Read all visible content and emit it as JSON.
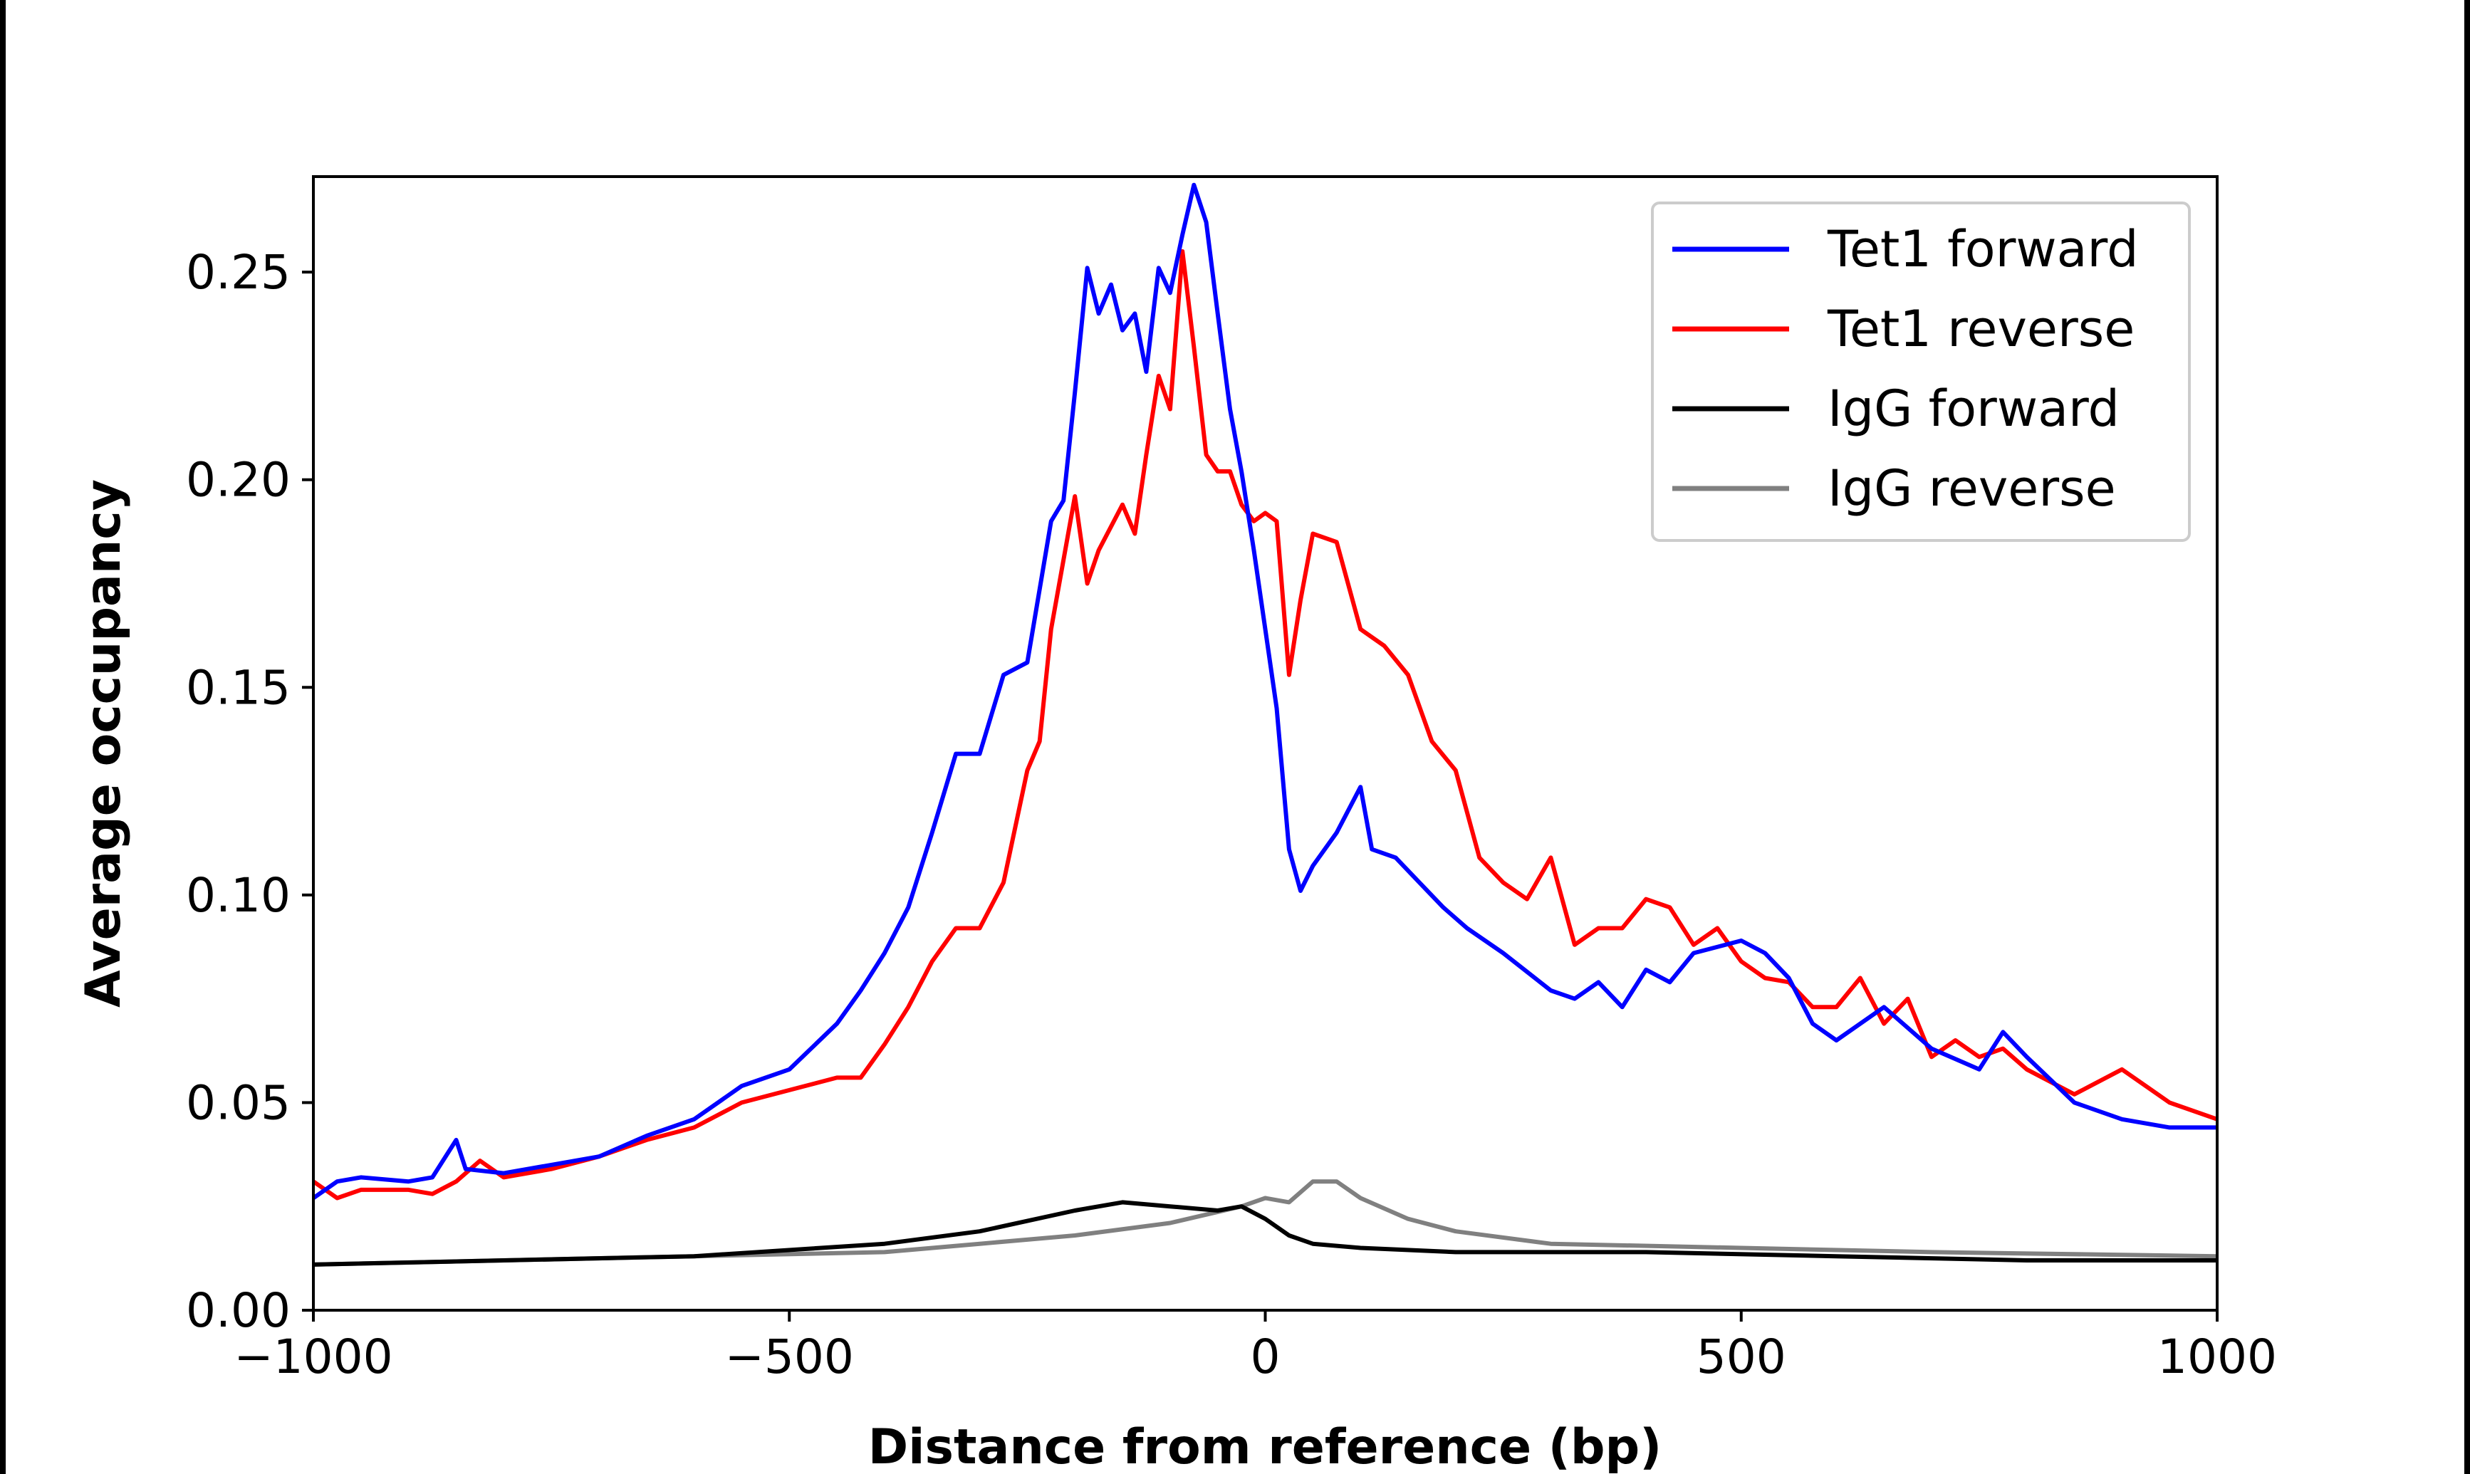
{
  "chart_data": {
    "type": "line",
    "title": "",
    "xlabel": "Distance from reference (bp)",
    "ylabel": "Average occupancy",
    "xlim": [
      -1000,
      1000
    ],
    "ylim": [
      0,
      0.273
    ],
    "xticks": [
      -1000,
      -500,
      0,
      500,
      1000
    ],
    "xtick_labels": [
      "−1000",
      "−500",
      "0",
      "500",
      "1000"
    ],
    "yticks": [
      0,
      0.05,
      0.1,
      0.15,
      0.2,
      0.25
    ],
    "ytick_labels": [
      "0.00",
      "0.05",
      "0.10",
      "0.15",
      "0.20",
      "0.25"
    ],
    "grid": false,
    "legend_position": "top-right",
    "series": [
      {
        "name": "Tet1 forward",
        "color": "#0000ff",
        "x": [
          -1000,
          -975,
          -950,
          -900,
          -875,
          -850,
          -840,
          -800,
          -750,
          -700,
          -650,
          -600,
          -550,
          -500,
          -450,
          -425,
          -400,
          -375,
          -350,
          -325,
          -300,
          -275,
          -250,
          -225,
          -212,
          -200,
          -187,
          -175,
          -162,
          -150,
          -137,
          -125,
          -112,
          -100,
          -87,
          -75,
          -62,
          -50,
          -37,
          -25,
          -12,
          0,
          12,
          25,
          37,
          50,
          75,
          100,
          112,
          137,
          162,
          187,
          212,
          250,
          300,
          325,
          350,
          375,
          400,
          425,
          450,
          500,
          525,
          550,
          575,
          600,
          650,
          700,
          750,
          775,
          800,
          850,
          900,
          950,
          1000
        ],
        "y": [
          0.027,
          0.031,
          0.032,
          0.031,
          0.032,
          0.041,
          0.034,
          0.033,
          0.035,
          0.037,
          0.042,
          0.046,
          0.054,
          0.058,
          0.069,
          0.077,
          0.086,
          0.097,
          0.115,
          0.134,
          0.134,
          0.153,
          0.156,
          0.19,
          0.195,
          0.221,
          0.251,
          0.24,
          0.247,
          0.236,
          0.24,
          0.226,
          0.251,
          0.245,
          0.259,
          0.271,
          0.262,
          0.24,
          0.217,
          0.202,
          0.183,
          0.164,
          0.145,
          0.111,
          0.101,
          0.107,
          0.115,
          0.126,
          0.111,
          0.109,
          0.103,
          0.097,
          0.092,
          0.086,
          0.077,
          0.075,
          0.079,
          0.073,
          0.082,
          0.079,
          0.086,
          0.089,
          0.086,
          0.08,
          0.069,
          0.065,
          0.073,
          0.063,
          0.058,
          0.067,
          0.061,
          0.05,
          0.046,
          0.044,
          0.044
        ]
      },
      {
        "name": "Tet1 reverse",
        "color": "#ff0000",
        "x": [
          -1000,
          -975,
          -950,
          -900,
          -875,
          -850,
          -825,
          -800,
          -750,
          -700,
          -650,
          -600,
          -550,
          -500,
          -450,
          -425,
          -400,
          -375,
          -350,
          -325,
          -300,
          -275,
          -250,
          -237,
          -225,
          -200,
          -187,
          -175,
          -150,
          -137,
          -125,
          -112,
          -100,
          -87,
          -75,
          -62,
          -50,
          -37,
          -25,
          -12,
          0,
          12,
          25,
          37,
          50,
          75,
          100,
          125,
          150,
          175,
          200,
          225,
          250,
          275,
          300,
          325,
          350,
          375,
          400,
          425,
          450,
          475,
          500,
          525,
          550,
          575,
          600,
          625,
          650,
          675,
          700,
          725,
          750,
          775,
          800,
          850,
          900,
          950,
          1000
        ],
        "y": [
          0.031,
          0.027,
          0.029,
          0.029,
          0.028,
          0.031,
          0.036,
          0.032,
          0.034,
          0.037,
          0.041,
          0.044,
          0.05,
          0.053,
          0.056,
          0.056,
          0.064,
          0.073,
          0.084,
          0.092,
          0.092,
          0.103,
          0.13,
          0.137,
          0.164,
          0.196,
          0.175,
          0.183,
          0.194,
          0.187,
          0.206,
          0.225,
          0.217,
          0.255,
          0.232,
          0.206,
          0.202,
          0.202,
          0.194,
          0.19,
          0.192,
          0.19,
          0.153,
          0.171,
          0.187,
          0.185,
          0.164,
          0.16,
          0.153,
          0.137,
          0.13,
          0.109,
          0.103,
          0.099,
          0.109,
          0.088,
          0.092,
          0.092,
          0.099,
          0.097,
          0.088,
          0.092,
          0.084,
          0.08,
          0.079,
          0.073,
          0.073,
          0.08,
          0.069,
          0.075,
          0.061,
          0.065,
          0.061,
          0.063,
          0.058,
          0.052,
          0.058,
          0.05,
          0.046
        ]
      },
      {
        "name": "IgG forward",
        "color": "#000000",
        "x": [
          -1000,
          -800,
          -600,
          -400,
          -300,
          -200,
          -150,
          -100,
          -50,
          -25,
          0,
          25,
          50,
          100,
          200,
          400,
          600,
          800,
          1000
        ],
        "y": [
          0.011,
          0.012,
          0.013,
          0.016,
          0.019,
          0.024,
          0.026,
          0.025,
          0.024,
          0.025,
          0.022,
          0.018,
          0.016,
          0.015,
          0.014,
          0.014,
          0.013,
          0.012,
          0.012
        ]
      },
      {
        "name": "IgG reverse",
        "color": "#808080",
        "x": [
          -1000,
          -800,
          -600,
          -400,
          -300,
          -200,
          -100,
          -25,
          0,
          25,
          50,
          75,
          100,
          150,
          200,
          300,
          500,
          700,
          1000
        ],
        "y": [
          0.011,
          0.012,
          0.013,
          0.014,
          0.016,
          0.018,
          0.021,
          0.025,
          0.027,
          0.026,
          0.031,
          0.031,
          0.027,
          0.022,
          0.019,
          0.016,
          0.015,
          0.014,
          0.013
        ]
      }
    ]
  }
}
